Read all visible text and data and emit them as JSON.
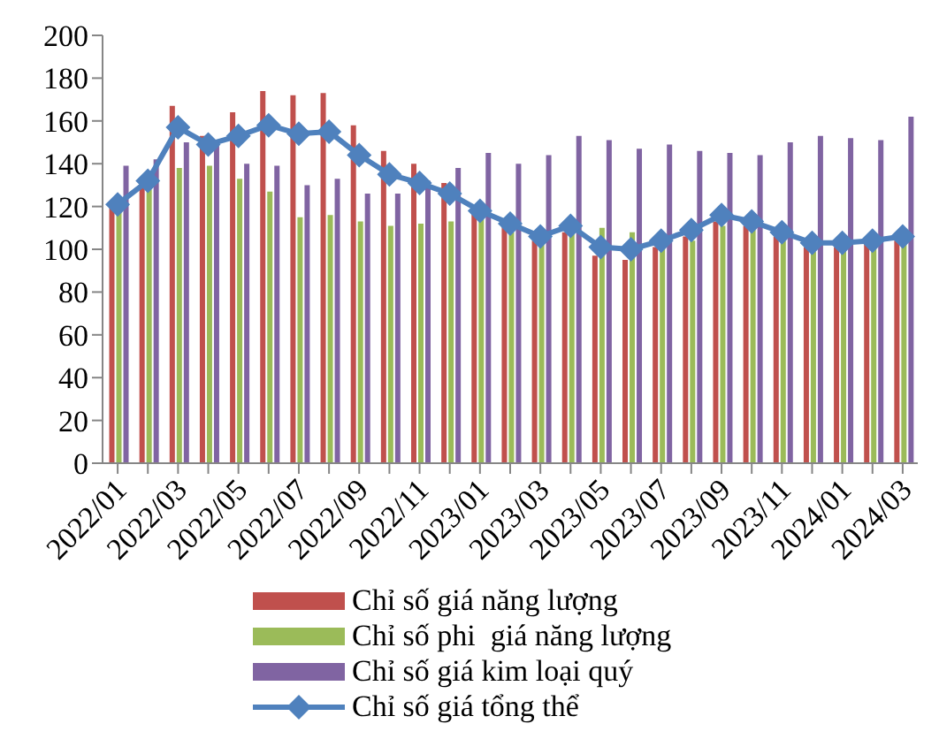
{
  "chart_data": {
    "type": "bar",
    "categories": [
      "2022/01",
      null,
      "2022/03",
      null,
      "2022/05",
      null,
      "2022/07",
      null,
      "2022/09",
      null,
      "2022/11",
      null,
      "2023/01",
      null,
      "2023/03",
      null,
      "2023/05",
      null,
      "2023/07",
      null,
      "2023/09",
      null,
      "2023/11",
      null,
      "2024/01",
      null,
      "2024/03"
    ],
    "series": [
      {
        "name": "Chỉ số giá năng lượng",
        "color": "#c0504d",
        "values": [
          121,
          129,
          167,
          153,
          164,
          174,
          172,
          173,
          158,
          146,
          140,
          131,
          118,
          111,
          104,
          108,
          97,
          95,
          101,
          106,
          113,
          111,
          106,
          101,
          101,
          103,
          104
        ]
      },
      {
        "name": "Chỉ số phi  giá năng lượng",
        "color": "#9bbb59",
        "values": [
          118,
          128,
          138,
          139,
          133,
          127,
          115,
          116,
          113,
          111,
          112,
          113,
          114,
          108,
          103,
          107,
          110,
          108,
          101,
          104,
          111,
          110,
          104,
          99,
          101,
          101,
          103
        ]
      },
      {
        "name": "Chỉ số giá kim loại quý",
        "color": "#8064a2",
        "values": [
          139,
          142,
          150,
          150,
          140,
          139,
          130,
          133,
          126,
          126,
          132,
          138,
          145,
          140,
          144,
          153,
          151,
          147,
          149,
          146,
          145,
          144,
          150,
          153,
          152,
          151,
          162
        ]
      },
      {
        "name": "Chỉ số giá tổng thể",
        "type": "line",
        "color": "#4f81bd",
        "marker": "diamond",
        "values": [
          121,
          132,
          157,
          149,
          153,
          158,
          154,
          155,
          144,
          135,
          131,
          126,
          118,
          112,
          106,
          111,
          101,
          100,
          104,
          109,
          116,
          113,
          108,
          103,
          103,
          104,
          106
        ]
      }
    ],
    "ylim": [
      0,
      200
    ],
    "yticks": [
      0,
      20,
      40,
      60,
      80,
      100,
      120,
      140,
      160,
      180,
      200
    ],
    "legend": "bottom"
  }
}
